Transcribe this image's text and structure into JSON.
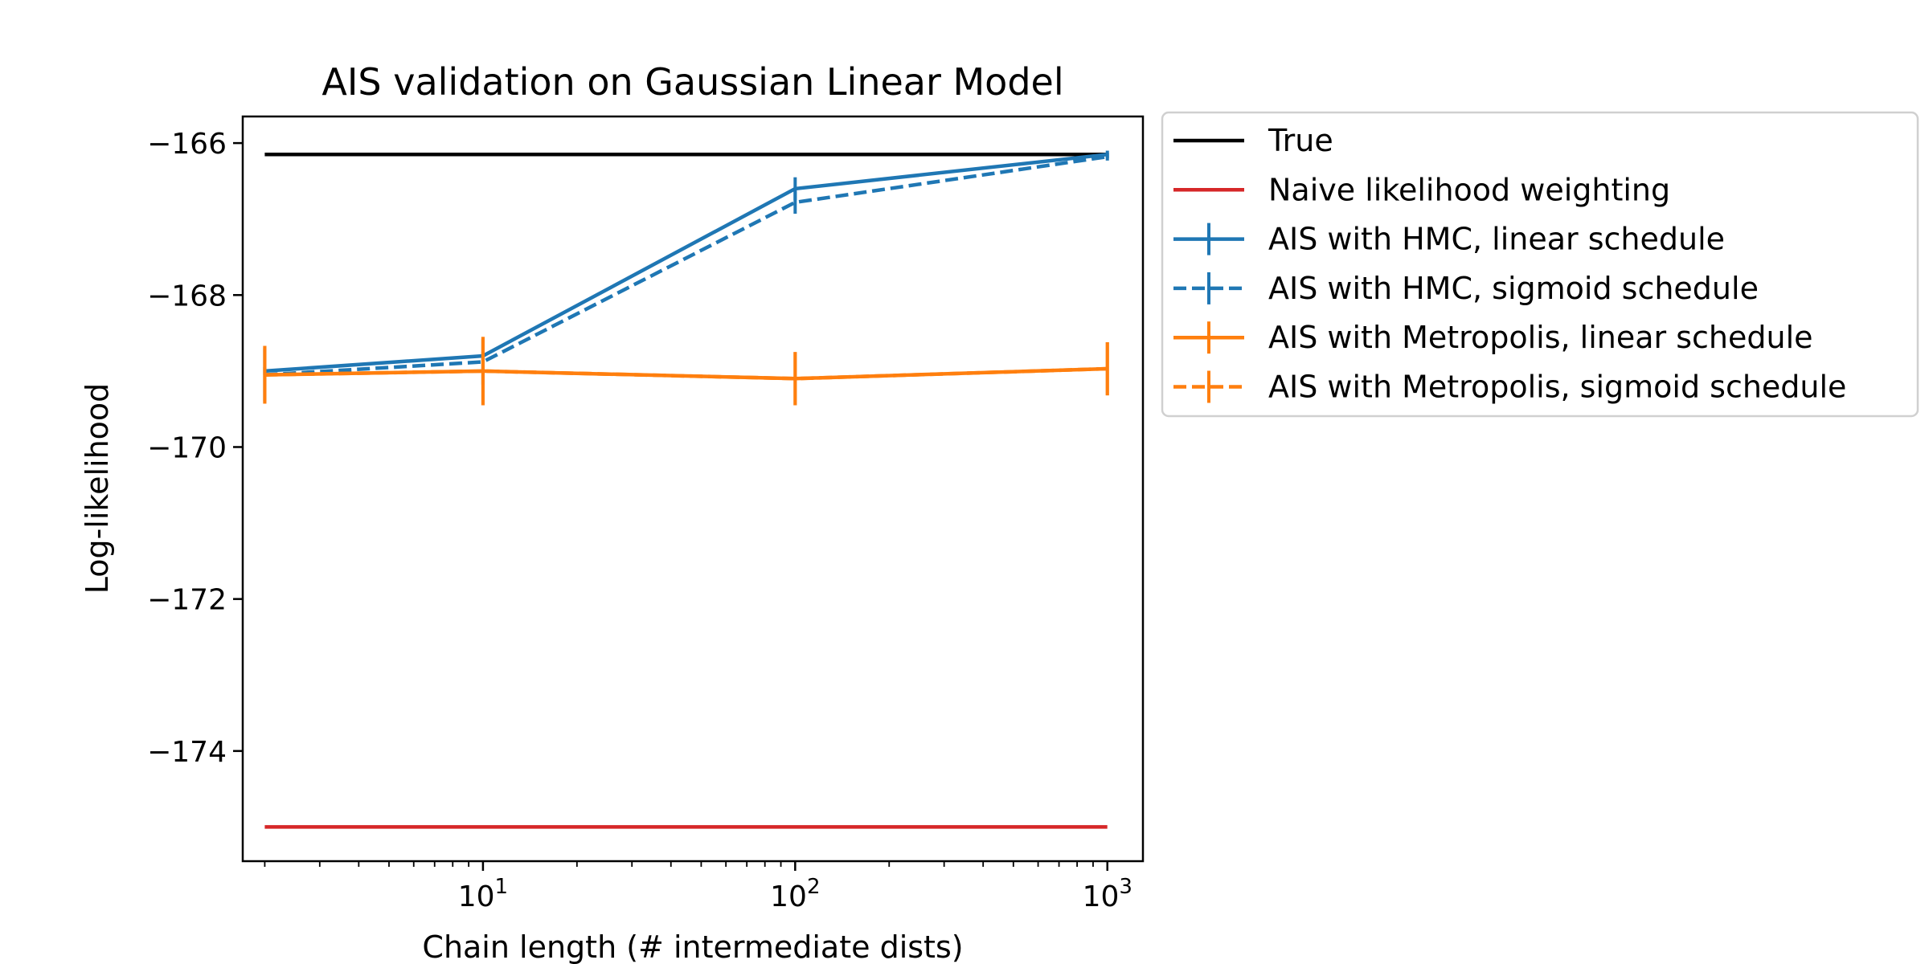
{
  "chart_data": {
    "type": "line",
    "title": "AIS validation on Gaussian Linear Model",
    "xlabel": "Chain length (# intermediate dists)",
    "ylabel": "Log-likelihood",
    "xscale": "log",
    "xlim": [
      1.7,
      1300
    ],
    "ylim": [
      -175.45,
      -165.65
    ],
    "x_ticks": [
      {
        "value": 10,
        "base": "10",
        "exp": "1"
      },
      {
        "value": 100,
        "base": "10",
        "exp": "2"
      },
      {
        "value": 1000,
        "base": "10",
        "exp": "3"
      }
    ],
    "y_ticks": [
      {
        "value": -166,
        "label": "−166"
      },
      {
        "value": -168,
        "label": "−168"
      },
      {
        "value": -170,
        "label": "−170"
      },
      {
        "value": -172,
        "label": "−172"
      },
      {
        "value": -174,
        "label": "−174"
      }
    ],
    "grid": false,
    "legend_position": "outside-right-top",
    "series": [
      {
        "name": "True",
        "color": "#000000",
        "style": "solid",
        "errorbars": false,
        "x": [
          2,
          1000
        ],
        "y": [
          -166.15,
          -166.15
        ]
      },
      {
        "name": "Naive likelihood weighting",
        "color": "#d62728",
        "style": "solid",
        "errorbars": false,
        "x": [
          2,
          1000
        ],
        "y": [
          -175.0,
          -175.0
        ]
      },
      {
        "name": "AIS with HMC, linear schedule",
        "color": "#1f77b4",
        "style": "solid",
        "errorbars": true,
        "x": [
          2,
          10,
          100,
          1000
        ],
        "y": [
          -169.0,
          -168.8,
          -166.6,
          -166.15
        ],
        "err": [
          0.05,
          0.05,
          0.15,
          0.05
        ]
      },
      {
        "name": "AIS with HMC, sigmoid schedule",
        "color": "#1f77b4",
        "style": "dashed",
        "errorbars": true,
        "x": [
          2,
          10,
          100,
          1000
        ],
        "y": [
          -169.05,
          -168.88,
          -166.78,
          -166.18
        ],
        "err": [
          0.35,
          0.3,
          0.15,
          0.05
        ]
      },
      {
        "name": "AIS with Metropolis, linear schedule",
        "color": "#ff7f0e",
        "style": "solid",
        "errorbars": true,
        "x": [
          2,
          10,
          100,
          1000
        ],
        "y": [
          -169.05,
          -169.0,
          -169.1,
          -168.97
        ],
        "err": [
          0.38,
          0.45,
          0.35,
          0.35
        ]
      },
      {
        "name": "AIS with Metropolis, sigmoid schedule",
        "color": "#ff7f0e",
        "style": "dashed",
        "errorbars": true,
        "x": [
          2,
          10,
          100,
          1000
        ],
        "y": [
          -169.05,
          -169.0,
          -169.1,
          -168.97
        ],
        "err": [
          0.38,
          0.45,
          0.35,
          0.35
        ]
      }
    ]
  }
}
